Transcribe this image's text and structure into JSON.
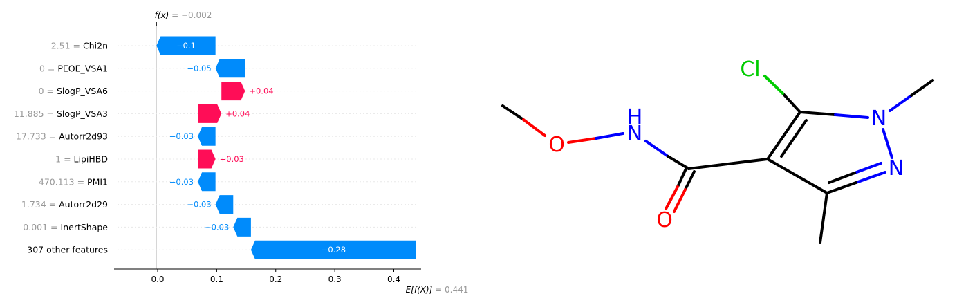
{
  "chart_data": {
    "type": "waterfall",
    "fx_label": "f(x)",
    "fx_value": "= −0.002",
    "base_label": "E[f(X)]",
    "base_value": "= 0.441",
    "base": 0.441,
    "final": -0.002,
    "features": [
      {
        "value": "2.51",
        "name": "Chi2n",
        "contribution": -0.1,
        "label": "−0.1"
      },
      {
        "value": "0",
        "name": "PEOE_VSA1",
        "contribution": -0.05,
        "label": "−0.05"
      },
      {
        "value": "0",
        "name": "SlogP_VSA6",
        "contribution": 0.04,
        "label": "+0.04"
      },
      {
        "value": "11.885",
        "name": "SlogP_VSA3",
        "contribution": 0.04,
        "label": "+0.04"
      },
      {
        "value": "17.733",
        "name": "Autorr2d93",
        "contribution": -0.03,
        "label": "−0.03"
      },
      {
        "value": "1",
        "name": "LipiHBD",
        "contribution": 0.03,
        "label": "+0.03"
      },
      {
        "value": "470.113",
        "name": "PMI1",
        "contribution": -0.03,
        "label": "−0.03"
      },
      {
        "value": "1.734",
        "name": "Autorr2d29",
        "contribution": -0.03,
        "label": "−0.03"
      },
      {
        "value": "0.001",
        "name": "InertShape",
        "contribution": -0.03,
        "label": "−0.03"
      },
      {
        "value": "",
        "name": "307 other features",
        "contribution": -0.28,
        "label": "−0.28"
      }
    ],
    "xticks": [
      {
        "v": 0.0,
        "label": "0.0"
      },
      {
        "v": 0.1,
        "label": "0.1"
      },
      {
        "v": 0.2,
        "label": "0.2"
      },
      {
        "v": 0.3,
        "label": "0.3"
      },
      {
        "v": 0.4,
        "label": "0.4"
      }
    ],
    "xlim": [
      -0.075,
      0.446
    ],
    "colors": {
      "positive": "#ff0d57",
      "negative": "#008bfb",
      "muted": "#999999"
    }
  },
  "molecule": {
    "atoms": [
      "Cl",
      "H",
      "N",
      "N",
      "N",
      "O",
      "O"
    ]
  }
}
